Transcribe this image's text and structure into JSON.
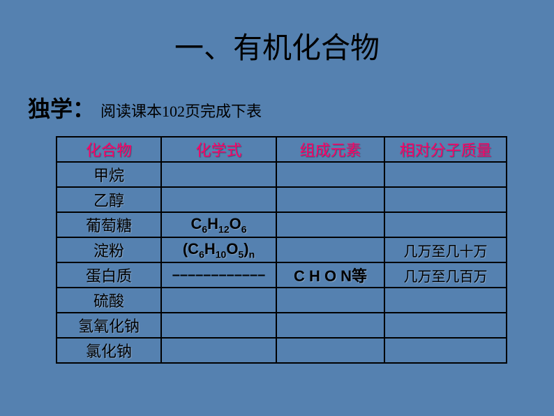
{
  "title": "一、有机化合物",
  "subtitle_bold": "独学：",
  "subtitle_text": "阅读课本102页完成下表",
  "headers": {
    "c1": "化合物",
    "c2": "化学式",
    "c3": "组成元素",
    "c4": "相对分子质量"
  },
  "rows": {
    "r1": {
      "label": "甲烷",
      "formula": "",
      "elements": "",
      "mass": ""
    },
    "r2": {
      "label": "乙醇",
      "formula": "",
      "elements": "",
      "mass": ""
    },
    "r3": {
      "label": "葡萄糖",
      "formula_html": "C<sub>6</sub>H<sub>12</sub>O<sub>6</sub>",
      "elements": "",
      "mass": ""
    },
    "r4": {
      "label": "淀粉",
      "formula_html": "(C<sub>6</sub>H<sub>10</sub>O<sub>5</sub>)<sub>n</sub>",
      "elements": "",
      "mass": "几万至几十万"
    },
    "r5": {
      "label": "蛋白质",
      "formula": "––––––––––––",
      "elements": "C H O N等",
      "mass": "几万至几百万"
    },
    "r6": {
      "label": "硫酸",
      "formula": "",
      "elements": "",
      "mass": ""
    },
    "r7": {
      "label": "氢氧化钠",
      "formula": "",
      "elements": "",
      "mass": ""
    },
    "r8": {
      "label": "氯化钠",
      "formula": "",
      "elements": "",
      "mass": ""
    }
  },
  "colors": {
    "bg": "#5581b0",
    "header_text": "#ff0066",
    "body_text": "#000000",
    "border": "#000000"
  }
}
